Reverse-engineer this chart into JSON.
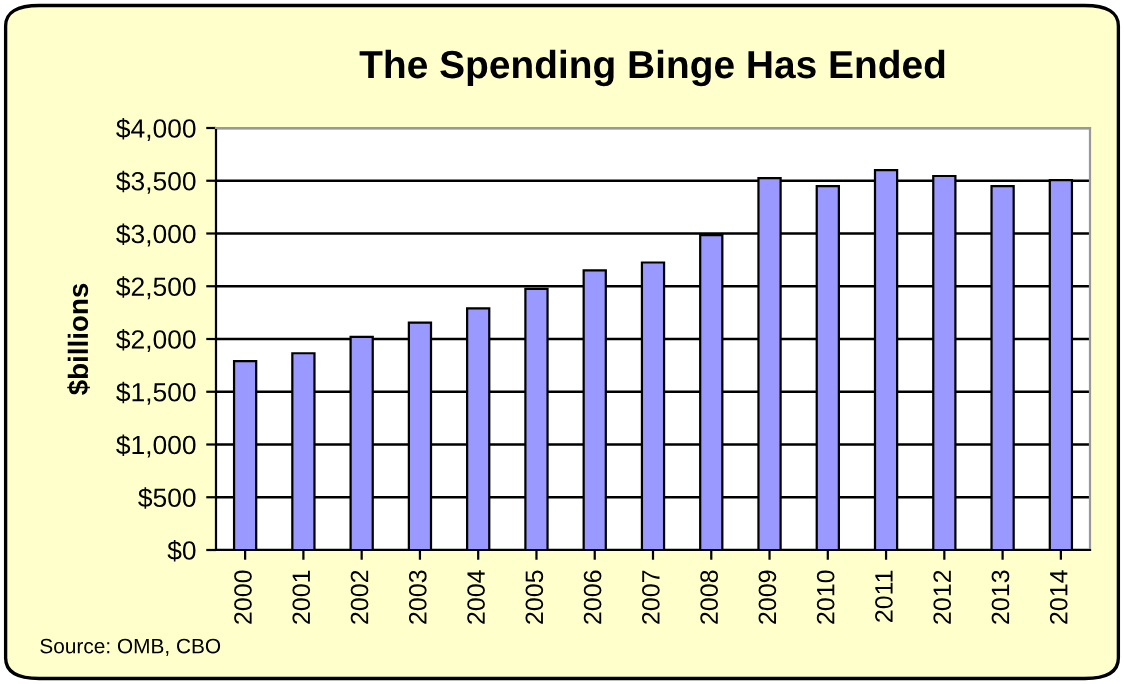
{
  "chart_data": {
    "type": "bar",
    "title": "The Spending Binge Has Ended",
    "ylabel": "$billions",
    "categories": [
      "2000",
      "2001",
      "2002",
      "2003",
      "2004",
      "2005",
      "2006",
      "2007",
      "2008",
      "2009",
      "2010",
      "2011",
      "2012",
      "2013",
      "2014"
    ],
    "values": [
      1790,
      1865,
      2020,
      2155,
      2290,
      2475,
      2650,
      2725,
      2985,
      3525,
      3450,
      3600,
      3545,
      3450,
      3505
    ],
    "color": "#9999ff",
    "ylim": [
      0,
      4000
    ],
    "yticks": [
      {
        "value": 0,
        "label": "$0"
      },
      {
        "value": 500,
        "label": "$500"
      },
      {
        "value": 1000,
        "label": "$1,000"
      },
      {
        "value": 1500,
        "label": "$1,500"
      },
      {
        "value": 2000,
        "label": "$2,000"
      },
      {
        "value": 2500,
        "label": "$2,500"
      },
      {
        "value": 3000,
        "label": "$3,000"
      },
      {
        "value": 3500,
        "label": "$3,500"
      },
      {
        "value": 4000,
        "label": "$4,000"
      }
    ],
    "grid": "y",
    "annotations": [
      "Source: OMB, CBO"
    ]
  }
}
